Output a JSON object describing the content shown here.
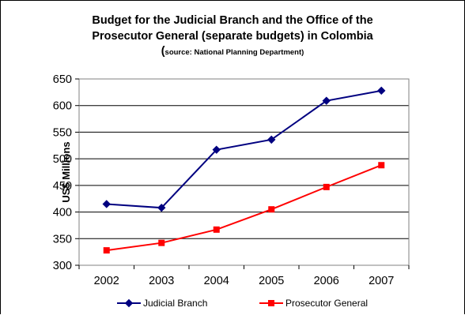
{
  "chart_data": {
    "type": "line",
    "title_line1": "Budget for the Judicial Branch and the Office of the",
    "title_line2": "Prosecutor General (separate budgets) in Colombia",
    "source_open": "(",
    "source_text": "source: National Planning Department)",
    "xlabel": "",
    "ylabel": "US$ Millions",
    "ylim": [
      300,
      650
    ],
    "yticks": [
      300,
      350,
      400,
      450,
      500,
      550,
      600,
      650
    ],
    "categories": [
      "2002",
      "2003",
      "2004",
      "2005",
      "2006",
      "2007"
    ],
    "grid": true,
    "legend_position": "bottom",
    "series": [
      {
        "name": "Judicial Branch",
        "color": "#000080",
        "marker": "diamond",
        "values": [
          415,
          408,
          517,
          536,
          609,
          628
        ]
      },
      {
        "name": "Prosecutor General",
        "color": "#ff0000",
        "marker": "square",
        "values": [
          328,
          342,
          367,
          405,
          447,
          488
        ]
      }
    ]
  }
}
